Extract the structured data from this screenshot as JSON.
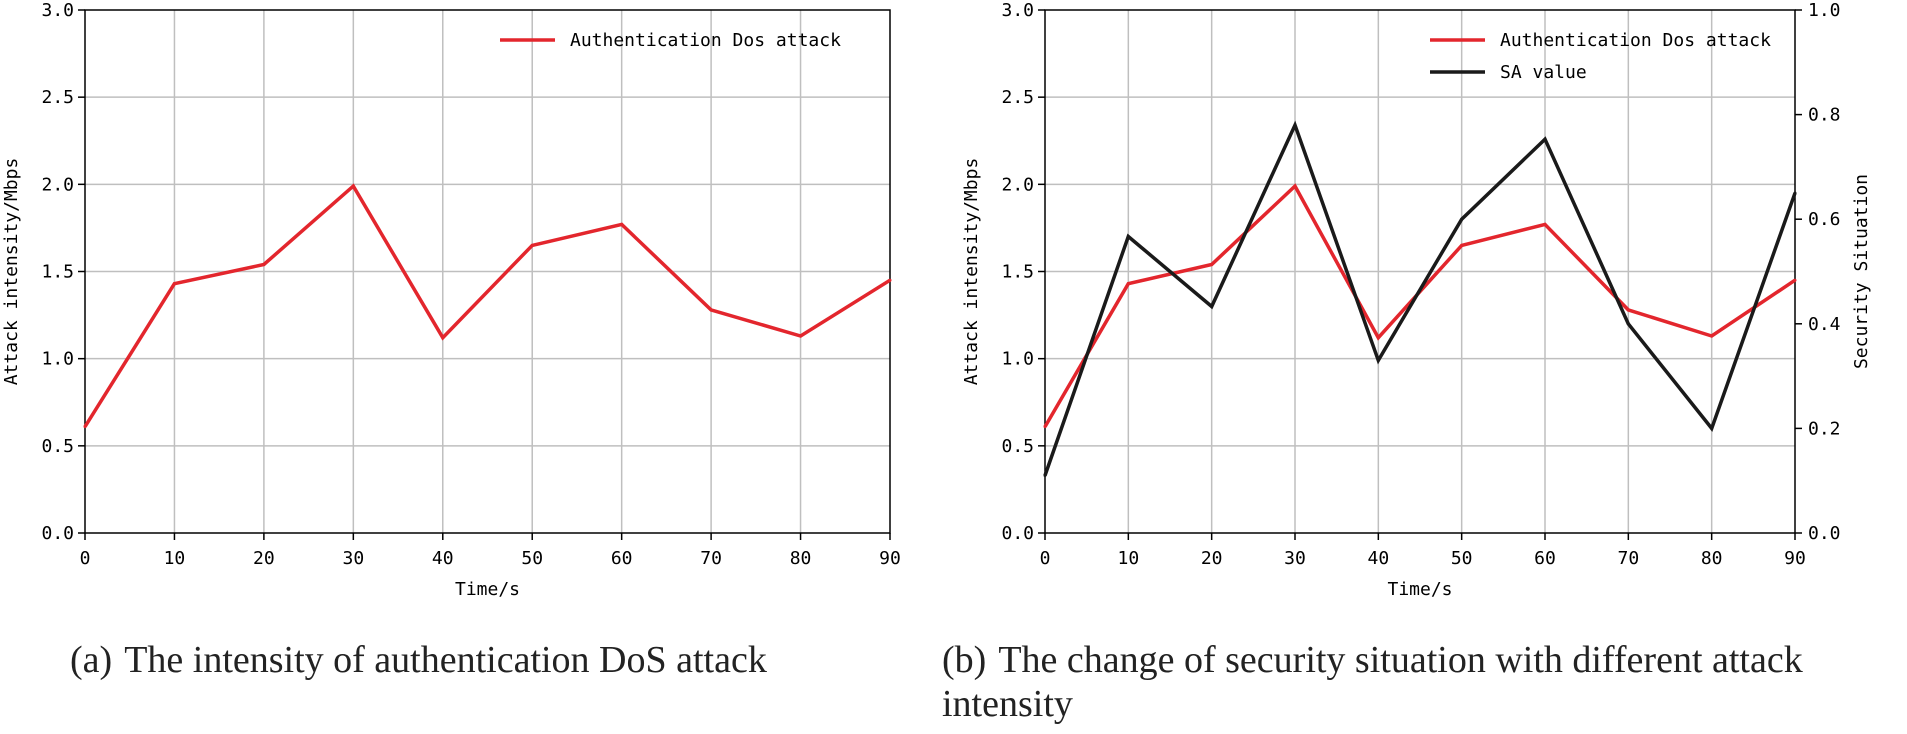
{
  "colors": {
    "red": "#e3262d",
    "black": "#1a1a1a",
    "grid": "#bfbfbf"
  },
  "chart_data": [
    {
      "type": "line",
      "title": "",
      "xlabel": "Time/s",
      "ylabel": "Attack intensity/Mbps",
      "xlim": [
        0,
        90
      ],
      "ylim": [
        0,
        3.0
      ],
      "xticks": [
        "0",
        "10",
        "20",
        "30",
        "40",
        "50",
        "60",
        "70",
        "80",
        "90"
      ],
      "yticks": [
        "0.0",
        "0.5",
        "1.0",
        "1.5",
        "2.0",
        "2.5",
        "3.0"
      ],
      "x": [
        0,
        10,
        20,
        30,
        40,
        50,
        60,
        70,
        80,
        90
      ],
      "series": [
        {
          "name": "Authentication Dos attack",
          "color": "#e3262d",
          "values": [
            0.61,
            1.43,
            1.54,
            1.99,
            1.12,
            1.65,
            1.77,
            1.28,
            1.13,
            1.45
          ]
        }
      ],
      "legend": "top-right",
      "grid": true,
      "caption_label": "(a)",
      "caption": "The intensity of authentication DoS attack"
    },
    {
      "type": "line",
      "title": "",
      "xlabel": "Time/s",
      "ylabel": "Attack intensity/Mbps",
      "y2label": "Security Situation",
      "xlim": [
        0,
        90
      ],
      "ylim": [
        0,
        3.0
      ],
      "y2lim": [
        0,
        1.0
      ],
      "xticks": [
        "0",
        "10",
        "20",
        "30",
        "40",
        "50",
        "60",
        "70",
        "80",
        "90"
      ],
      "yticks": [
        "0.0",
        "0.5",
        "1.0",
        "1.5",
        "2.0",
        "2.5",
        "3.0"
      ],
      "y2ticks": [
        "0.0",
        "0.2",
        "0.4",
        "0.6",
        "0.8",
        "1.0"
      ],
      "x": [
        0,
        10,
        20,
        30,
        40,
        50,
        60,
        70,
        80,
        90
      ],
      "series": [
        {
          "name": "Authentication Dos attack",
          "axis": "left",
          "color": "#e3262d",
          "values": [
            0.61,
            1.43,
            1.54,
            1.99,
            1.12,
            1.65,
            1.77,
            1.28,
            1.13,
            1.45
          ]
        },
        {
          "name": "SA value",
          "axis": "right",
          "color": "#1a1a1a",
          "values": [
            0.11,
            0.567,
            0.433,
            0.78,
            0.33,
            0.6,
            0.753,
            0.4,
            0.2,
            0.65
          ]
        }
      ],
      "legend": "top-right",
      "grid": true,
      "caption_label": "(b)",
      "caption": "The change of security situation with different attack",
      "caption_line2": "intensity"
    }
  ]
}
